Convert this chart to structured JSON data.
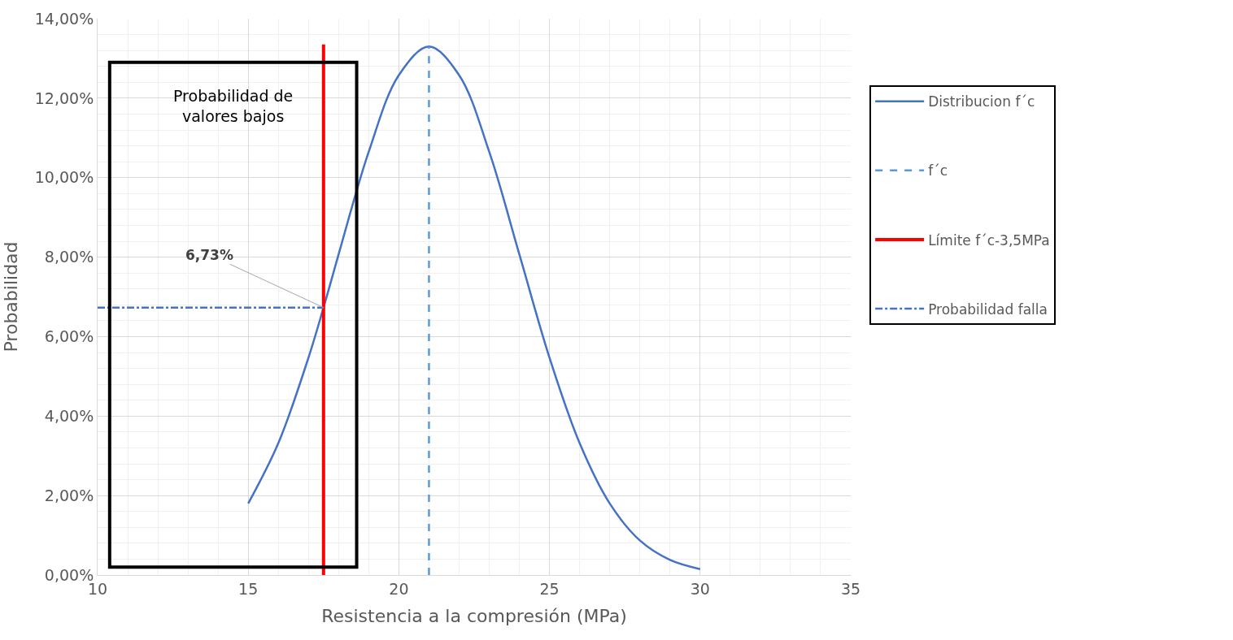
{
  "chart_data": {
    "type": "line",
    "xlabel": "Resistencia a la compresión (MPa)",
    "ylabel": "Probabilidad",
    "xlim": [
      10,
      35
    ],
    "xticks": [
      10,
      15,
      20,
      25,
      30,
      35
    ],
    "ylim": [
      0,
      14
    ],
    "yticks": [
      {
        "value": 0,
        "label": "0,00%"
      },
      {
        "value": 2,
        "label": "2,00%"
      },
      {
        "value": 4,
        "label": "4,00%"
      },
      {
        "value": 6,
        "label": "6,00%"
      },
      {
        "value": 8,
        "label": "8,00%"
      },
      {
        "value": 10,
        "label": "10,00%"
      },
      {
        "value": 12,
        "label": "12,00%"
      },
      {
        "value": 14,
        "label": "14,00%"
      }
    ],
    "grid": true,
    "legend": "right",
    "marker": "none",
    "series": [
      {
        "name": "Distribucion f´c",
        "color": "#4472c4",
        "line_style": "solid",
        "x": [
          15,
          16,
          17,
          17.5,
          18,
          19,
          20,
          21,
          22,
          23,
          24,
          25,
          26,
          27,
          28,
          29,
          30
        ],
        "values": [
          1.8,
          3.32,
          5.47,
          6.73,
          8.07,
          10.65,
          12.58,
          13.3,
          12.58,
          10.65,
          8.07,
          5.47,
          3.32,
          1.8,
          0.87,
          0.38,
          0.15
        ]
      },
      {
        "name": "f´c",
        "color": "#5b9bd5",
        "line_style": "dashed",
        "x": [
          21,
          21
        ],
        "values": [
          0,
          13.3
        ]
      },
      {
        "name": "Límite f´c-3,5MPa",
        "color": "#ff0000",
        "line_style": "solid",
        "x": [
          17.5,
          17.5
        ],
        "values": [
          0,
          13.35
        ]
      },
      {
        "name": "Probabilidad falla",
        "color": "#4472c4",
        "line_style": "dashdot",
        "x": [
          10,
          17.5
        ],
        "values": [
          6.73,
          6.73
        ]
      }
    ],
    "annotations": [
      {
        "text": "6,73%",
        "x": 17.5,
        "y": 6.73
      },
      "Probabilidad de\nvalores bajos"
    ]
  }
}
